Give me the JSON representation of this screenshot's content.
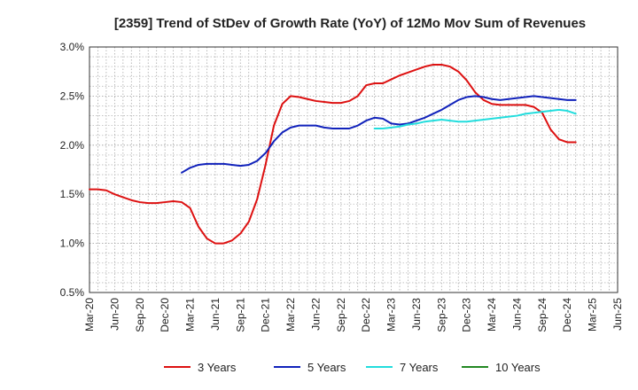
{
  "chart_data": {
    "type": "line",
    "title": "[2359]  Trend of StDev of Growth Rate (YoY) of 12Mo Mov Sum of Revenues",
    "xlabel": "",
    "ylabel": "",
    "ylim": [
      0.5,
      3.0
    ],
    "y_ticks": [
      "0.5%",
      "1.0%",
      "1.5%",
      "2.0%",
      "2.5%",
      "3.0%"
    ],
    "y_tick_values": [
      0.5,
      1.0,
      1.5,
      2.0,
      2.5,
      3.0
    ],
    "x_ticks": [
      "Mar-20",
      "Jun-20",
      "Sep-20",
      "Dec-20",
      "Mar-21",
      "Jun-21",
      "Sep-21",
      "Dec-21",
      "Mar-22",
      "Jun-22",
      "Sep-22",
      "Dec-22",
      "Mar-23",
      "Jun-23",
      "Sep-23",
      "Dec-23",
      "Mar-24",
      "Jun-24",
      "Sep-24",
      "Dec-24",
      "Mar-25",
      "Jun-25"
    ],
    "x_range_months": [
      0,
      63
    ],
    "grid": true,
    "legend_position": "bottom",
    "series": [
      {
        "name": "3 Years",
        "color": "#dd1111",
        "points": [
          [
            0,
            1.55
          ],
          [
            1,
            1.55
          ],
          [
            2,
            1.54
          ],
          [
            3,
            1.5
          ],
          [
            4,
            1.47
          ],
          [
            5,
            1.44
          ],
          [
            6,
            1.42
          ],
          [
            7,
            1.41
          ],
          [
            8,
            1.41
          ],
          [
            9,
            1.42
          ],
          [
            10,
            1.43
          ],
          [
            11,
            1.42
          ],
          [
            12,
            1.36
          ],
          [
            13,
            1.17
          ],
          [
            14,
            1.05
          ],
          [
            15,
            1.0
          ],
          [
            16,
            1.0
          ],
          [
            17,
            1.03
          ],
          [
            18,
            1.1
          ],
          [
            19,
            1.22
          ],
          [
            20,
            1.45
          ],
          [
            21,
            1.8
          ],
          [
            22,
            2.2
          ],
          [
            23,
            2.42
          ],
          [
            24,
            2.5
          ],
          [
            25,
            2.49
          ],
          [
            26,
            2.47
          ],
          [
            27,
            2.45
          ],
          [
            28,
            2.44
          ],
          [
            29,
            2.43
          ],
          [
            30,
            2.43
          ],
          [
            31,
            2.45
          ],
          [
            32,
            2.5
          ],
          [
            33,
            2.61
          ],
          [
            34,
            2.63
          ],
          [
            35,
            2.63
          ],
          [
            36,
            2.67
          ],
          [
            37,
            2.71
          ],
          [
            38,
            2.74
          ],
          [
            39,
            2.77
          ],
          [
            40,
            2.8
          ],
          [
            41,
            2.82
          ],
          [
            42,
            2.82
          ],
          [
            43,
            2.8
          ],
          [
            44,
            2.75
          ],
          [
            45,
            2.66
          ],
          [
            46,
            2.54
          ],
          [
            47,
            2.46
          ],
          [
            48,
            2.42
          ],
          [
            49,
            2.41
          ],
          [
            50,
            2.41
          ],
          [
            51,
            2.41
          ],
          [
            52,
            2.41
          ],
          [
            53,
            2.39
          ],
          [
            54,
            2.33
          ],
          [
            55,
            2.16
          ],
          [
            56,
            2.06
          ],
          [
            57,
            2.03
          ],
          [
            58,
            2.03
          ]
        ]
      },
      {
        "name": "5 Years",
        "color": "#1122bb",
        "points": [
          [
            11,
            1.72
          ],
          [
            12,
            1.77
          ],
          [
            13,
            1.8
          ],
          [
            14,
            1.81
          ],
          [
            15,
            1.81
          ],
          [
            16,
            1.81
          ],
          [
            17,
            1.8
          ],
          [
            18,
            1.79
          ],
          [
            19,
            1.8
          ],
          [
            20,
            1.84
          ],
          [
            21,
            1.92
          ],
          [
            22,
            2.04
          ],
          [
            23,
            2.13
          ],
          [
            24,
            2.18
          ],
          [
            25,
            2.2
          ],
          [
            26,
            2.2
          ],
          [
            27,
            2.2
          ],
          [
            28,
            2.18
          ],
          [
            29,
            2.17
          ],
          [
            30,
            2.17
          ],
          [
            31,
            2.17
          ],
          [
            32,
            2.2
          ],
          [
            33,
            2.25
          ],
          [
            34,
            2.28
          ],
          [
            35,
            2.27
          ],
          [
            36,
            2.22
          ],
          [
            37,
            2.21
          ],
          [
            38,
            2.22
          ],
          [
            39,
            2.25
          ],
          [
            40,
            2.28
          ],
          [
            41,
            2.32
          ],
          [
            42,
            2.36
          ],
          [
            43,
            2.41
          ],
          [
            44,
            2.46
          ],
          [
            45,
            2.49
          ],
          [
            46,
            2.5
          ],
          [
            47,
            2.49
          ],
          [
            48,
            2.47
          ],
          [
            49,
            2.46
          ],
          [
            50,
            2.47
          ],
          [
            51,
            2.48
          ],
          [
            52,
            2.49
          ],
          [
            53,
            2.5
          ],
          [
            54,
            2.49
          ],
          [
            55,
            2.48
          ],
          [
            56,
            2.47
          ],
          [
            57,
            2.46
          ],
          [
            58,
            2.46
          ]
        ]
      },
      {
        "name": "7 Years",
        "color": "#22dddd",
        "points": [
          [
            34,
            2.17
          ],
          [
            35,
            2.17
          ],
          [
            36,
            2.18
          ],
          [
            37,
            2.19
          ],
          [
            38,
            2.21
          ],
          [
            39,
            2.22
          ],
          [
            40,
            2.24
          ],
          [
            41,
            2.25
          ],
          [
            42,
            2.26
          ],
          [
            43,
            2.25
          ],
          [
            44,
            2.24
          ],
          [
            45,
            2.24
          ],
          [
            46,
            2.25
          ],
          [
            47,
            2.26
          ],
          [
            48,
            2.27
          ],
          [
            49,
            2.28
          ],
          [
            50,
            2.29
          ],
          [
            51,
            2.3
          ],
          [
            52,
            2.32
          ],
          [
            53,
            2.33
          ],
          [
            54,
            2.34
          ],
          [
            55,
            2.35
          ],
          [
            56,
            2.36
          ],
          [
            57,
            2.35
          ],
          [
            58,
            2.32
          ]
        ]
      },
      {
        "name": "10 Years",
        "color": "#228822",
        "points": []
      }
    ]
  }
}
